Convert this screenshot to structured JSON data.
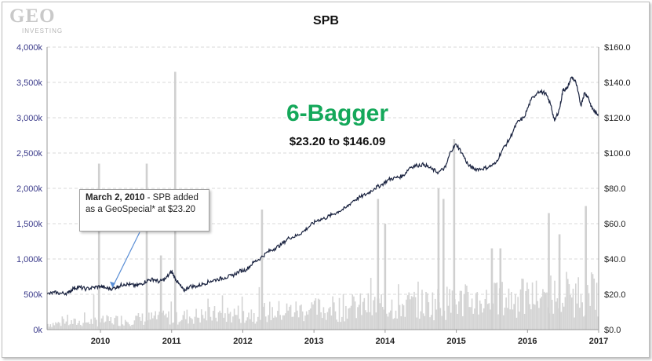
{
  "logo": {
    "main": "GEO",
    "sub": "INVESTING"
  },
  "chart_data": {
    "type": "line",
    "title": "SPB",
    "annotation": {
      "headline": "6-Bagger",
      "subhead": "$23.20 to $146.09",
      "callout_date": "March 2, 2010",
      "callout_text": " - SPB added as a GeoSpecial* at $23.20"
    },
    "x_ticks": [
      "2010",
      "2011",
      "2012",
      "2013",
      "2014",
      "2015",
      "2016",
      "2017"
    ],
    "y_left_ticks": [
      "0k",
      "500k",
      "1,000k",
      "1,500k",
      "2,000k",
      "2,500k",
      "3,000k",
      "3,500k",
      "4,000k"
    ],
    "y_right_ticks": [
      "$0.0",
      "$20.0",
      "$40.0",
      "$60.0",
      "$80.0",
      "$100.0",
      "$120.0",
      "$140.0",
      "$160.0"
    ],
    "xlim": [
      2009.25,
      2017.0
    ],
    "ylim_left": [
      0,
      4000000
    ],
    "ylim_right": [
      0,
      160
    ],
    "grid": true,
    "series": [
      {
        "axis": "right",
        "color": "#1a2340",
        "x": [
          2009.25,
          2009.35,
          2009.45,
          2009.55,
          2009.62,
          2009.7,
          2009.8,
          2009.9,
          2010.0,
          2010.08,
          2010.17,
          2010.25,
          2010.33,
          2010.42,
          2010.5,
          2010.58,
          2010.67,
          2010.75,
          2010.83,
          2010.92,
          2011.0,
          2011.05,
          2011.1,
          2011.17,
          2011.25,
          2011.35,
          2011.45,
          2011.55,
          2011.65,
          2011.75,
          2011.85,
          2011.95,
          2012.05,
          2012.15,
          2012.25,
          2012.35,
          2012.45,
          2012.55,
          2012.65,
          2012.75,
          2012.85,
          2012.95,
          2013.05,
          2013.15,
          2013.25,
          2013.35,
          2013.45,
          2013.55,
          2013.65,
          2013.75,
          2013.85,
          2013.95,
          2014.05,
          2014.15,
          2014.25,
          2014.35,
          2014.45,
          2014.55,
          2014.65,
          2014.75,
          2014.85,
          2014.92,
          2015.0,
          2015.08,
          2015.17,
          2015.25,
          2015.35,
          2015.45,
          2015.55,
          2015.65,
          2015.75,
          2015.85,
          2015.95,
          2016.05,
          2016.15,
          2016.25,
          2016.33,
          2016.38,
          2016.45,
          2016.5,
          2016.55,
          2016.62,
          2016.68,
          2016.75,
          2016.8,
          2016.85,
          2016.9,
          2016.95,
          2017.0
        ],
        "y": [
          20.0,
          21.0,
          20.5,
          20.8,
          23.5,
          24.0,
          23.0,
          23.8,
          24.5,
          23.5,
          23.2,
          24.5,
          25.8,
          25.5,
          24.8,
          26.0,
          28.0,
          28.5,
          27.0,
          29.0,
          33.0,
          29.0,
          26.0,
          22.0,
          24.5,
          24.5,
          26.0,
          27.5,
          28.5,
          29.5,
          30.5,
          33.0,
          34.0,
          38.0,
          40.5,
          44.0,
          46.0,
          48.5,
          52.0,
          53.0,
          55.5,
          59.0,
          62.0,
          63.0,
          65.0,
          67.0,
          69.0,
          73.0,
          75.0,
          77.0,
          80.0,
          82.0,
          85.0,
          86.0,
          87.0,
          92.0,
          93.0,
          93.5,
          91.0,
          89.0,
          92.0,
          101.0,
          105.0,
          100.0,
          93.0,
          91.0,
          91.0,
          92.0,
          94.0,
          102.0,
          108.0,
          117.0,
          120.0,
          130.0,
          135.0,
          134.0,
          127.0,
          118.0,
          125.0,
          136.0,
          136.0,
          143.0,
          140.0,
          127.0,
          134.0,
          132.0,
          126.0,
          123.0,
          122.0
        ]
      }
    ],
    "volume_spikes": [
      {
        "x": 2009.98,
        "y": 2350000
      },
      {
        "x": 2010.65,
        "y": 2350000
      },
      {
        "x": 2011.05,
        "y": 3650000
      },
      {
        "x": 2010.85,
        "y": 1050000
      },
      {
        "x": 2012.27,
        "y": 1700000
      },
      {
        "x": 2013.9,
        "y": 1850000
      },
      {
        "x": 2014.0,
        "y": 1500000
      },
      {
        "x": 2014.75,
        "y": 2000000
      },
      {
        "x": 2014.82,
        "y": 1850000
      },
      {
        "x": 2014.97,
        "y": 2700000
      },
      {
        "x": 2015.5,
        "y": 1150000
      },
      {
        "x": 2015.62,
        "y": 1150000
      },
      {
        "x": 2016.3,
        "y": 1650000
      },
      {
        "x": 2016.45,
        "y": 1350000
      },
      {
        "x": 2016.82,
        "y": 1750000
      }
    ]
  }
}
